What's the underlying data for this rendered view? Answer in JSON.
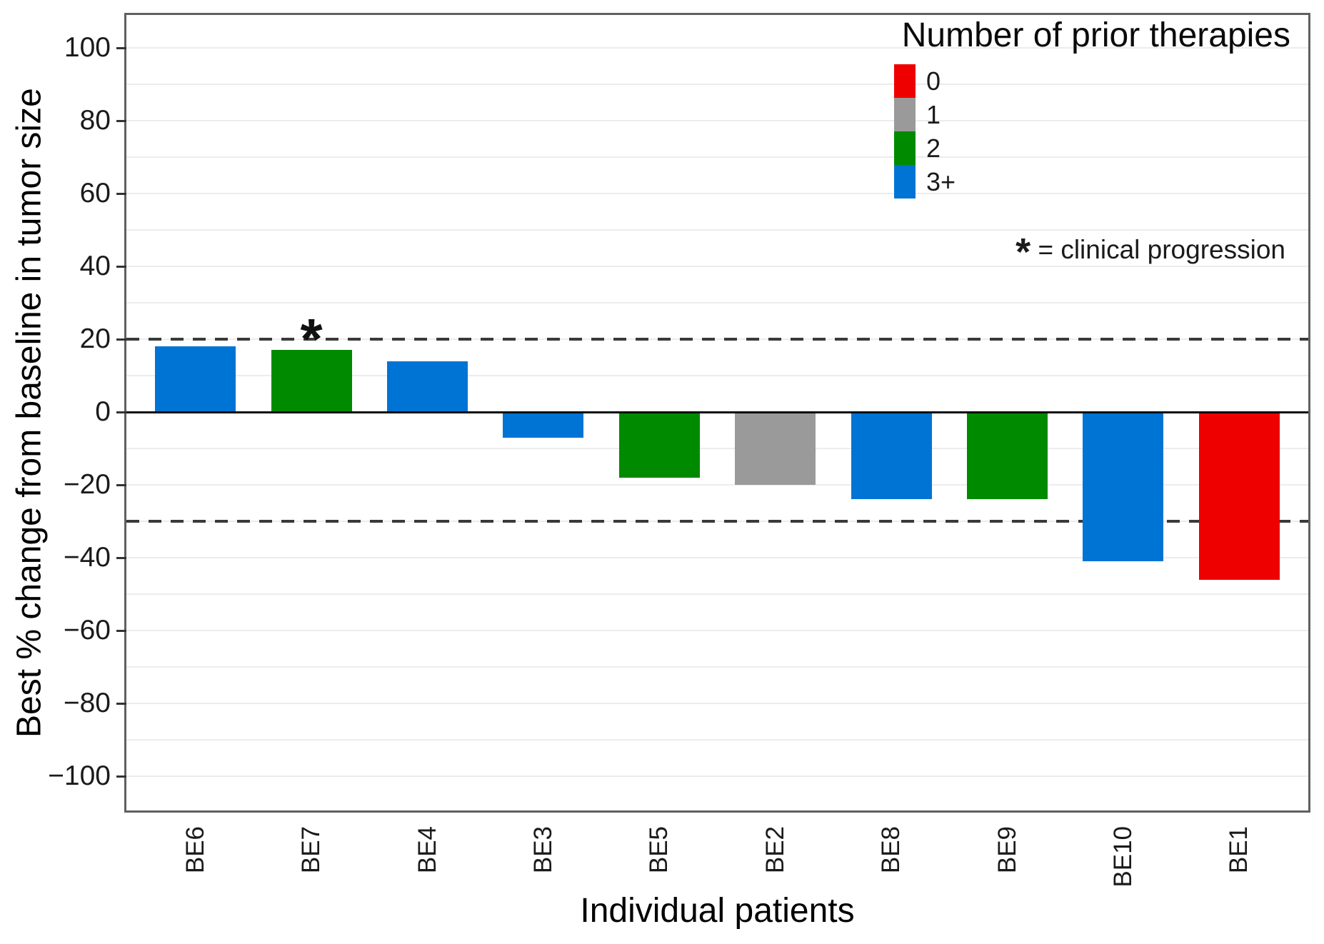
{
  "chart_data": {
    "type": "bar",
    "title": "",
    "xlabel": "Individual patients",
    "ylabel": "Best % change from baseline in tumor size",
    "ylim": [
      -110,
      110
    ],
    "yticks": [
      100,
      80,
      60,
      40,
      20,
      0,
      -20,
      -40,
      -60,
      -80,
      -100
    ],
    "minor_grid_step": 10,
    "grid": true,
    "legend_position": "top-right",
    "reference_lines": [
      20,
      -30
    ],
    "categories": [
      "BE6",
      "BE7",
      "BE4",
      "BE3",
      "BE5",
      "BE2",
      "BE8",
      "BE9",
      "BE10",
      "BE1"
    ],
    "series": [
      {
        "name": "Best % change from baseline in tumor size",
        "values": [
          18,
          17,
          14,
          -7,
          -18,
          -20,
          -24,
          -24,
          -41,
          -46
        ]
      }
    ],
    "bar_groups": [
      "3+",
      "2",
      "3+",
      "3+",
      "2",
      "1",
      "3+",
      "2",
      "3+",
      "0"
    ],
    "annotated_categories": [
      "BE7"
    ],
    "color_map": {
      "0": "#ee0000",
      "1": "#9a9a9a",
      "2": "#008a00",
      "3+": "#0074d4"
    },
    "legend": {
      "title": "Number of prior therapies",
      "entries": [
        {
          "label": "0",
          "color": "#ee0000"
        },
        {
          "label": "1",
          "color": "#9a9a9a"
        },
        {
          "label": "2",
          "color": "#008a00"
        },
        {
          "label": "3+",
          "color": "#0074d4"
        }
      ]
    },
    "annotation": {
      "symbol": "*",
      "text": "= clinical progression"
    }
  }
}
